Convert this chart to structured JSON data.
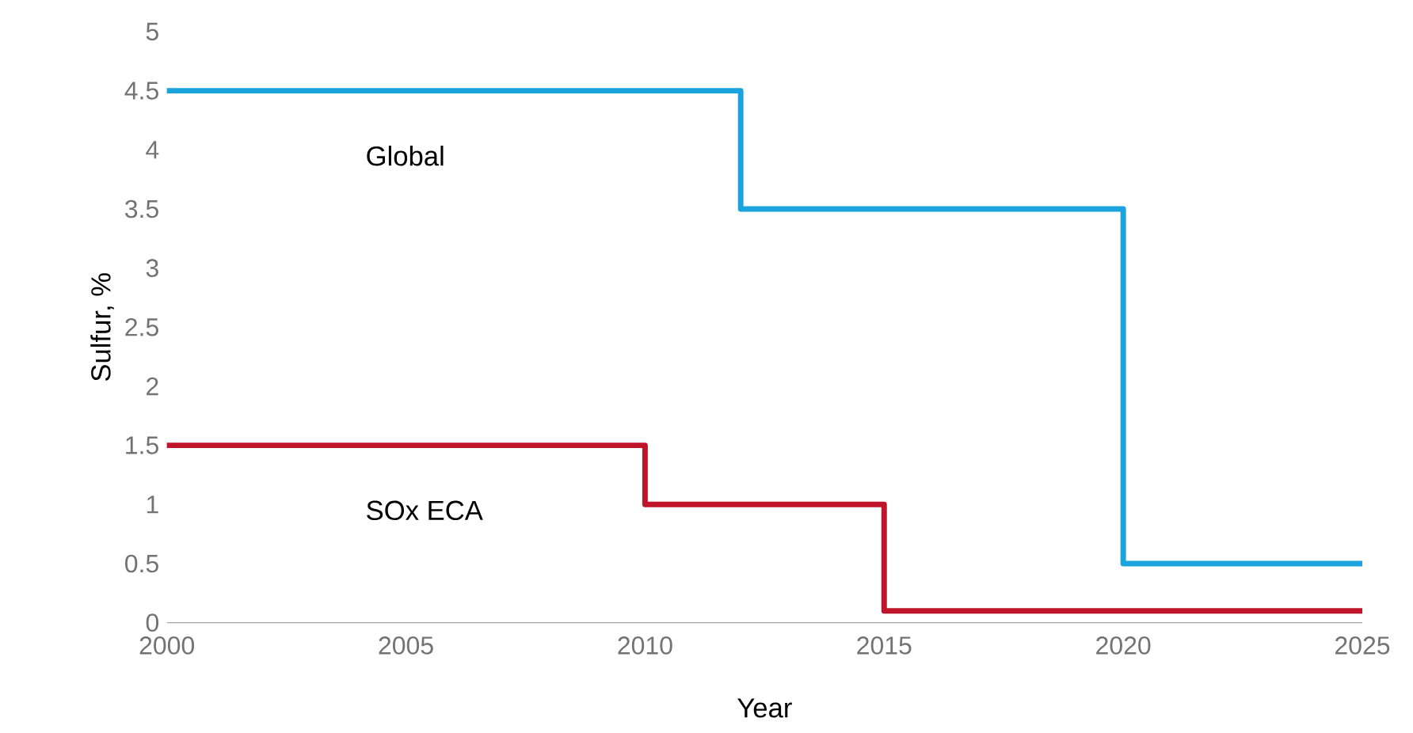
{
  "chart_data": {
    "type": "step",
    "xlabel": "Year",
    "ylabel": "Sulfur, %",
    "series": [
      {
        "name": "Global",
        "color": "#1aa3dd",
        "x": [
          2000,
          2012,
          2020,
          2025
        ],
        "values": [
          4.5,
          3.5,
          0.5,
          0.5
        ]
      },
      {
        "name": "SOx ECA",
        "color": "#c0142a",
        "x": [
          2000,
          2010,
          2015,
          2025
        ],
        "values": [
          1.5,
          1.0,
          0.1,
          0.1
        ]
      }
    ],
    "xlim": [
      2000,
      2025
    ],
    "xticks": [
      2000,
      2005,
      2010,
      2015,
      2020,
      2025
    ],
    "ylim": [
      0,
      5
    ],
    "yticks": [
      0,
      0.5,
      1,
      1.5,
      2,
      2.5,
      3,
      3.5,
      4,
      4.5,
      5
    ],
    "grid": false,
    "marker": "none",
    "line_style": "solid"
  }
}
